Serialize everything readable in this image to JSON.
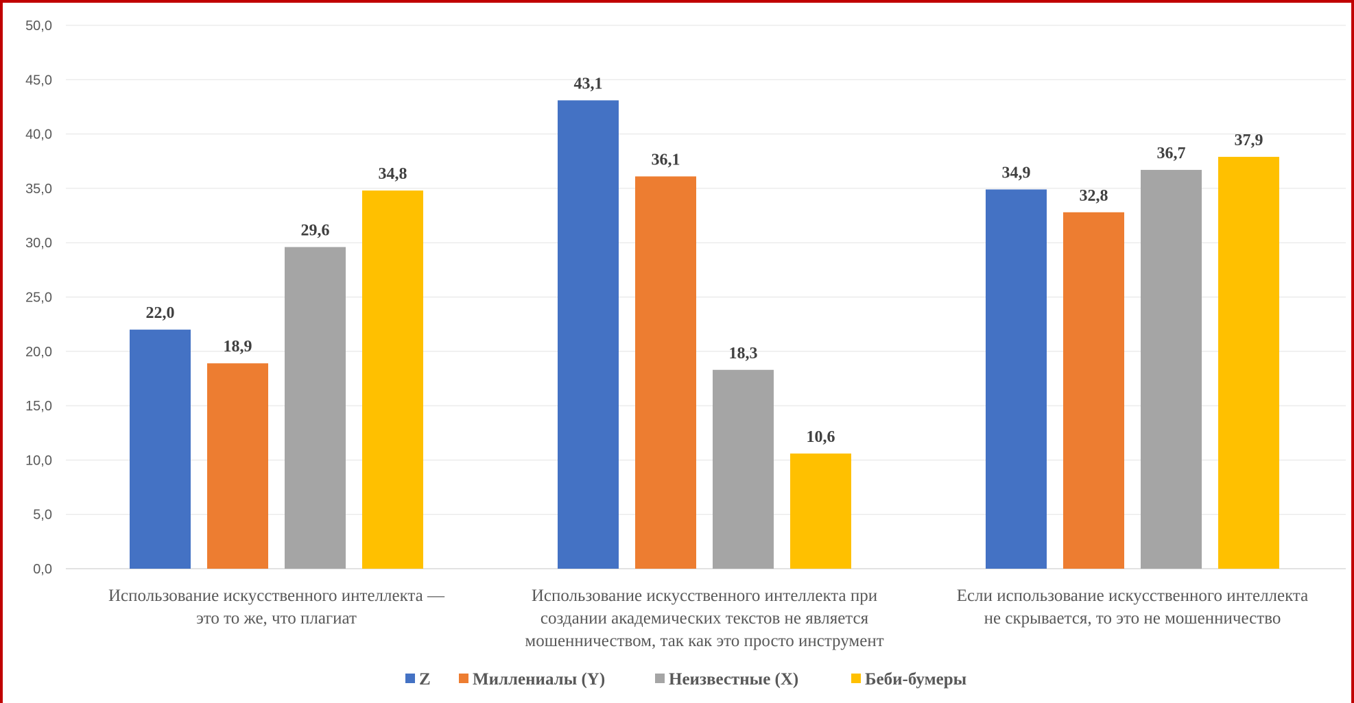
{
  "chart_data": {
    "type": "bar",
    "title": "",
    "xlabel": "",
    "ylabel": "",
    "ylim": [
      0,
      50
    ],
    "yticks": [
      "0,0",
      "5,0",
      "10,0",
      "15,0",
      "20,0",
      "25,0",
      "30,0",
      "35,0",
      "40,0",
      "45,0",
      "50,0"
    ],
    "grid": true,
    "legend_position": "bottom",
    "categories": [
      [
        "Использование искусственного интеллекта —",
        "это то же, что плагиат"
      ],
      [
        "Использование искусственного интеллекта при",
        "создании академических текстов не является",
        "мошенничеством, так как это просто инструмент"
      ],
      [
        "Если использование искусственного интеллекта",
        "не скрывается, то это не мошенничество"
      ]
    ],
    "series": [
      {
        "name": "Z",
        "color": "#4472c4",
        "values": [
          22.0,
          43.1,
          34.9
        ],
        "labels": [
          "22,0",
          "43,1",
          "34,9"
        ]
      },
      {
        "name": "Миллениалы (Y)",
        "color": "#ed7d31",
        "values": [
          18.9,
          36.1,
          32.8
        ],
        "labels": [
          "18,9",
          "36,1",
          "32,8"
        ]
      },
      {
        "name": "Неизвестные (X)",
        "color": "#a5a5a5",
        "values": [
          29.6,
          18.3,
          36.7
        ],
        "labels": [
          "29,6",
          "18,3",
          "36,7"
        ]
      },
      {
        "name": "Беби-бумеры",
        "color": "#ffc000",
        "values": [
          34.8,
          10.6,
          37.9
        ],
        "labels": [
          "34,8",
          "10,6",
          "37,9"
        ]
      }
    ]
  }
}
